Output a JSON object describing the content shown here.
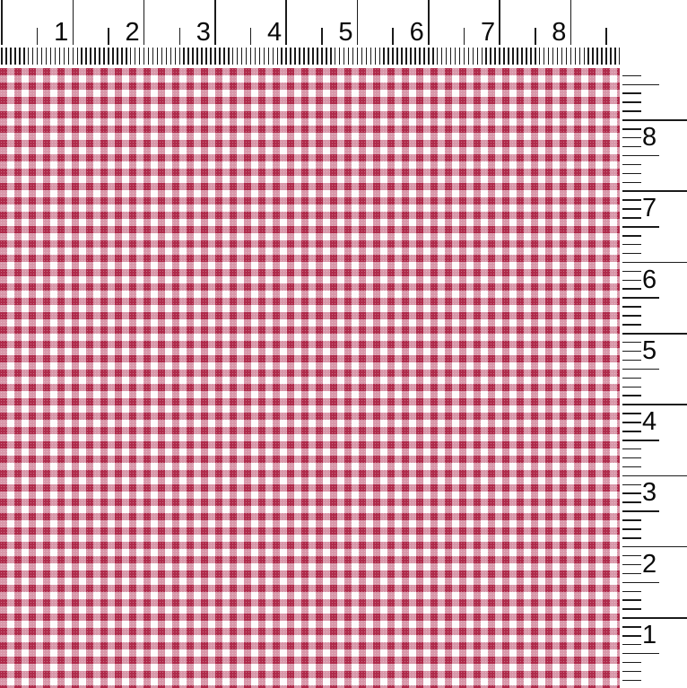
{
  "description": "Swatch of red and white gingham check fabric photographed with inch rulers along the top and right edges",
  "background_color": "#ffffff",
  "rulers": {
    "unit": "inch",
    "tick_color": "#1b1b1b",
    "top": {
      "labels": [
        "1",
        "2",
        "3",
        "4",
        "5",
        "6",
        "7",
        "8"
      ]
    },
    "right": {
      "labels": [
        "8",
        "7",
        "6",
        "5",
        "4",
        "3",
        "2",
        "1"
      ]
    }
  },
  "fabric": {
    "pattern": "gingham-check",
    "colors": {
      "check_red": "#af2b4b",
      "check_blend_pink": "#d897a9",
      "check_white": "#fdfcfc"
    }
  }
}
